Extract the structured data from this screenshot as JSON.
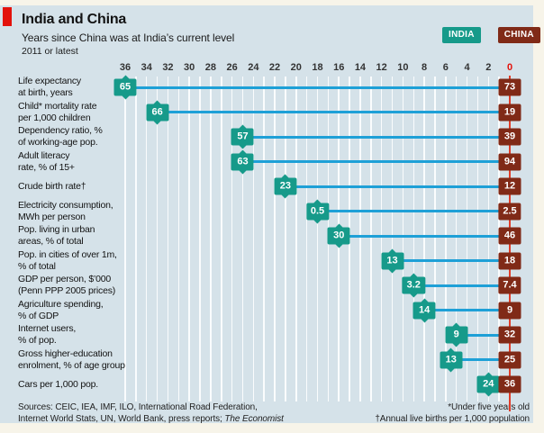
{
  "header": {
    "title": "India and China",
    "subtitle": "Years since China was at India’s current level",
    "note": "2011 or latest",
    "legend": {
      "india": {
        "label": "INDIA",
        "color": "#169a8a"
      },
      "china": {
        "label": "CHINA",
        "color": "#802a17"
      }
    }
  },
  "colors": {
    "panel_bg": "#d5e2e9",
    "page_bg": "#f7f4e9",
    "economist_red": "#e3120b",
    "india_teal": "#169a8a",
    "china_brown": "#802a17",
    "connector_blue": "#1ea0d7",
    "zero_line_red": "#e23c28",
    "gridline_white": "#ffffff",
    "tick_text": "#333333",
    "zero_tick_text": "#e3120b"
  },
  "chart_data": {
    "type": "dumbbell",
    "title": "India and China",
    "subtitle": "Years since China was at India’s current level",
    "note": "2011 or latest",
    "axis": {
      "unit": "years since China was at India’s current level",
      "min": 0,
      "max": 36,
      "direction": "right-to-left (36 at left, 0 at right)",
      "ticks": [
        36,
        34,
        32,
        30,
        28,
        26,
        24,
        22,
        20,
        18,
        16,
        14,
        12,
        10,
        8,
        6,
        4,
        2,
        0
      ],
      "grid": "white vertical line every 1 unit"
    },
    "rows": [
      {
        "label_lines": [
          "Life expectancy",
          "at birth, years"
        ],
        "india": "65",
        "china": "73",
        "years_since": 36
      },
      {
        "label_lines": [
          "Child* mortality rate",
          "per 1,000 children"
        ],
        "india": "66",
        "china": "19",
        "years_since": 33
      },
      {
        "label_lines": [
          "Dependency ratio, %",
          "of working-age pop."
        ],
        "india": "57",
        "china": "39",
        "years_since": 25
      },
      {
        "label_lines": [
          "Adult literacy",
          "rate, % of 15+"
        ],
        "india": "63",
        "china": "94",
        "years_since": 25
      },
      {
        "label_lines": [
          "Crude birth rate†"
        ],
        "india": "23",
        "china": "12",
        "years_since": 21
      },
      {
        "label_lines": [
          "Electricity consumption,",
          "MWh per person"
        ],
        "india": "0.5",
        "china": "2.5",
        "years_since": 18
      },
      {
        "label_lines": [
          "Pop. living in urban",
          "areas, % of total"
        ],
        "india": "30",
        "china": "46",
        "years_since": 16
      },
      {
        "label_lines": [
          "Pop. in cities of over 1m,",
          "% of total"
        ],
        "india": "13",
        "china": "18",
        "years_since": 11
      },
      {
        "label_lines": [
          "GDP per person, $’000",
          "(Penn PPP 2005 prices)"
        ],
        "india": "3.2",
        "china": "7.4",
        "years_since": 9
      },
      {
        "label_lines": [
          "Agriculture spending,",
          "% of GDP"
        ],
        "india": "14",
        "china": "9",
        "years_since": 8
      },
      {
        "label_lines": [
          "Internet users,",
          "% of pop."
        ],
        "india": "9",
        "china": "32",
        "years_since": 5
      },
      {
        "label_lines": [
          "Gross higher-education",
          "enrolment, % of age group"
        ],
        "india": "13",
        "china": "25",
        "years_since": 5.5
      },
      {
        "label_lines": [
          "Cars per 1,000 pop."
        ],
        "india": "24",
        "china": "36",
        "years_since": 2
      }
    ]
  },
  "footer": {
    "sources_line1": "Sources: CEIC, IEA, IMF, ILO, International Road Federation,",
    "sources_line2_prefix": "Internet World Stats, UN, World Bank, press reports; ",
    "sources_line2_italic": "The Economist",
    "footnote1": "*Under five years old",
    "footnote2": "†Annual live births per 1,000 population"
  }
}
